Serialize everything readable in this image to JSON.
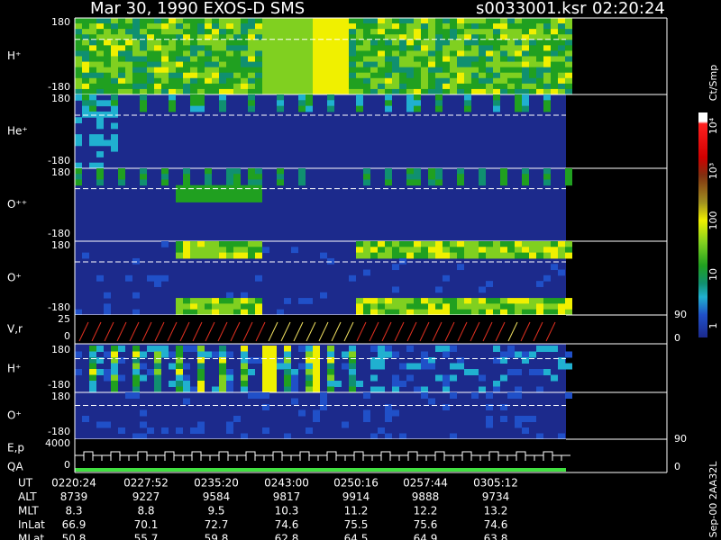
{
  "header": {
    "title": "Mar 30, 1990   EXOS-D SMS",
    "file": "s0033001.ksr",
    "time": "02:20:24"
  },
  "panels": [
    {
      "label": "H⁺",
      "ticks": [
        "180",
        "-180"
      ]
    },
    {
      "label": "He⁺",
      "ticks": [
        "180",
        "-180"
      ]
    },
    {
      "label": "O⁺⁺",
      "ticks": [
        "180",
        "-180"
      ]
    },
    {
      "label": "O⁺",
      "ticks": [
        "180",
        "-180"
      ]
    },
    {
      "label": "V,r",
      "ticks": [
        "25",
        "0"
      ],
      "right_ticks": [
        "90",
        "0"
      ]
    },
    {
      "label": "H⁺",
      "ticks": [
        "180",
        "-180"
      ]
    },
    {
      "label": "O⁺",
      "ticks": [
        "180",
        "-180"
      ]
    },
    {
      "label": "E,p",
      "label2": "QA",
      "ticks": [
        "4000",
        "0"
      ],
      "right_ticks": [
        "90",
        "0"
      ]
    }
  ],
  "colorbar": {
    "title": "Ct/Smp",
    "labels": [
      "10⁴",
      "10³",
      "100",
      "10",
      "1"
    ]
  },
  "footer": {
    "stamp": "Sep-00  2AA32L"
  },
  "ephemeris": {
    "rows": [
      {
        "name": "UT",
        "values": [
          "0220:24",
          "0227:52",
          "0235:20",
          "0243:00",
          "0250:16",
          "0257:44",
          "0305:12"
        ]
      },
      {
        "name": "ALT",
        "values": [
          "8739",
          "9227",
          "9584",
          "9817",
          "9914",
          "9888",
          "9734"
        ]
      },
      {
        "name": "MLT",
        "values": [
          "8.3",
          "8.8",
          "9.5",
          "10.3",
          "11.2",
          "12.2",
          "13.2"
        ]
      },
      {
        "name": "InLat",
        "values": [
          "66.9",
          "70.1",
          "72.7",
          "74.6",
          "75.5",
          "75.6",
          "74.6"
        ]
      },
      {
        "name": "MLat",
        "values": [
          "50.8",
          "55.7",
          "59.8",
          "62.8",
          "64.5",
          "64.9",
          "63.8"
        ]
      }
    ]
  }
}
